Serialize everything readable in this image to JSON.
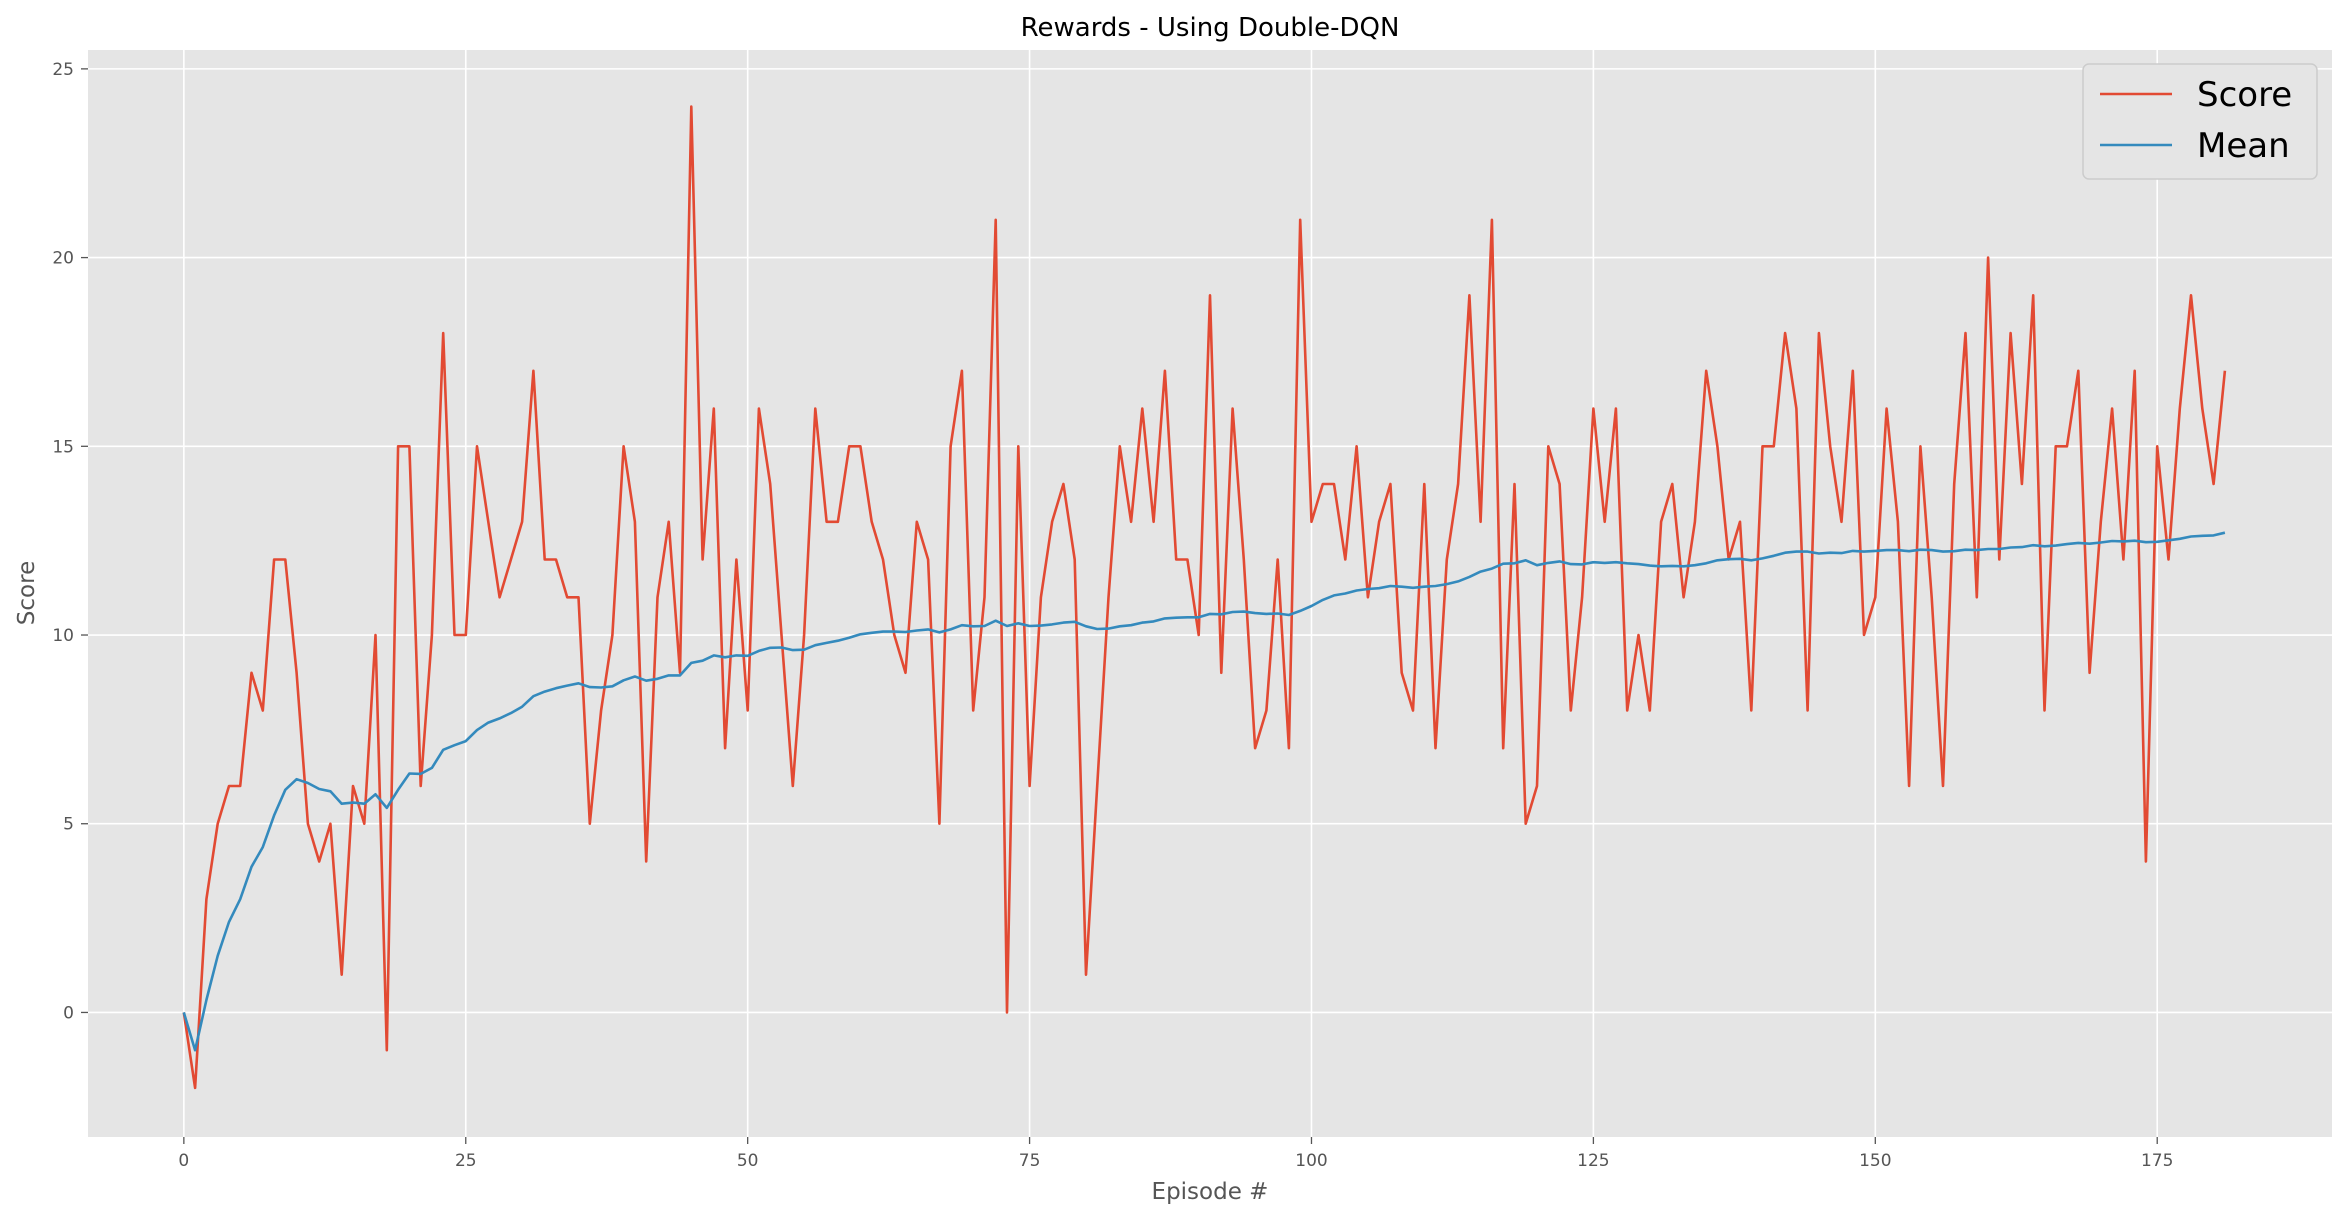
{
  "chart_data": {
    "type": "line",
    "title": "Rewards - Using Double-DQN",
    "xlabel": "Episode #",
    "ylabel": "Score",
    "xlim": [
      -8.5,
      190.5
    ],
    "ylim": [
      -3.3,
      25.5
    ],
    "xticks": [
      0,
      25,
      50,
      75,
      100,
      125,
      150,
      175
    ],
    "yticks": [
      0,
      5,
      10,
      15,
      20,
      25
    ],
    "grid": true,
    "legend": {
      "placement": "top-right"
    },
    "x": [
      0,
      1,
      2,
      3,
      4,
      5,
      6,
      7,
      8,
      9,
      10,
      11,
      12,
      13,
      14,
      15,
      16,
      17,
      18,
      19,
      20,
      21,
      22,
      23,
      24,
      25,
      26,
      27,
      28,
      29,
      30,
      31,
      32,
      33,
      34,
      35,
      36,
      37,
      38,
      39,
      40,
      41,
      42,
      43,
      44,
      45,
      46,
      47,
      48,
      49,
      50,
      51,
      52,
      53,
      54,
      55,
      56,
      57,
      58,
      59,
      60,
      61,
      62,
      63,
      64,
      65,
      66,
      67,
      68,
      69,
      70,
      71,
      72,
      73,
      74,
      75,
      76,
      77,
      78,
      79,
      80,
      81,
      82,
      83,
      84,
      85,
      86,
      87,
      88,
      89,
      90,
      91,
      92,
      93,
      94,
      95,
      96,
      97,
      98,
      99,
      100,
      101,
      102,
      103,
      104,
      105,
      106,
      107,
      108,
      109,
      110,
      111,
      112,
      113,
      114,
      115,
      116,
      117,
      118,
      119,
      120,
      121,
      122,
      123,
      124,
      125,
      126,
      127,
      128,
      129,
      130,
      131,
      132,
      133,
      134,
      135,
      136,
      137,
      138,
      139,
      140,
      141,
      142,
      143,
      144,
      145,
      146,
      147,
      148,
      149,
      150,
      151,
      152,
      153,
      154,
      155,
      156,
      157,
      158,
      159,
      160,
      161,
      162,
      163,
      164,
      165,
      166,
      167,
      168,
      169,
      170,
      171,
      172,
      173,
      174,
      175,
      176,
      177,
      178,
      179,
      180,
      181
    ],
    "series": [
      {
        "name": "Score",
        "color": "#E24A33",
        "values": [
          0,
          -2,
          3,
          5,
          6,
          6,
          9,
          8,
          12,
          12,
          9,
          5,
          4,
          5,
          1,
          6,
          5,
          10,
          -1,
          15,
          15,
          6,
          10,
          18,
          10,
          10,
          15,
          13,
          11,
          12,
          13,
          17,
          12,
          12,
          11,
          11,
          5,
          8,
          10,
          15,
          13,
          4,
          11,
          13,
          9,
          24,
          12,
          16,
          7,
          12,
          8,
          16,
          14,
          10,
          6,
          10,
          16,
          13,
          13,
          15,
          15,
          13,
          12,
          10,
          9,
          13,
          12,
          5,
          15,
          17,
          8,
          11,
          21,
          0,
          15,
          6,
          11,
          13,
          14,
          12,
          1,
          6,
          11,
          15,
          13,
          16,
          13,
          17,
          12,
          12,
          10,
          19,
          9,
          16,
          12,
          7,
          8,
          12,
          7,
          21,
          13,
          14,
          14,
          12,
          15,
          11,
          13,
          14,
          9,
          8,
          14,
          7,
          12,
          14,
          19,
          13,
          21,
          7,
          14,
          5,
          6,
          15,
          14,
          8,
          11,
          16,
          13,
          16,
          8,
          10,
          8,
          13,
          14,
          11,
          13,
          17,
          15,
          12,
          13,
          8,
          15,
          15,
          18,
          16,
          8,
          18,
          15,
          13,
          17,
          10,
          11,
          16,
          13,
          6,
          15,
          11,
          6,
          14,
          18,
          11,
          20,
          12,
          18,
          14,
          19,
          8,
          15,
          15,
          17,
          9,
          13,
          16,
          12,
          17,
          4,
          15,
          12,
          16,
          19,
          16,
          14,
          17
        ]
      },
      {
        "name": "Mean",
        "color": "#348ABD",
        "values": [
          0,
          -1,
          0.33,
          1.5,
          2.4,
          3,
          3.86,
          4.38,
          5.22,
          5.9,
          6.18,
          6.08,
          5.92,
          5.86,
          5.53,
          5.56,
          5.53,
          5.78,
          5.42,
          5.9,
          6.33,
          6.32,
          6.48,
          6.96,
          7.08,
          7.19,
          7.48,
          7.68,
          7.79,
          7.93,
          8.1,
          8.38,
          8.5,
          8.59,
          8.66,
          8.72,
          8.62,
          8.61,
          8.64,
          8.8,
          8.9,
          8.79,
          8.84,
          8.93,
          8.93,
          9.26,
          9.32,
          9.46,
          9.41,
          9.46,
          9.45,
          9.58,
          9.66,
          9.67,
          9.6,
          9.61,
          9.73,
          9.79,
          9.85,
          9.93,
          10.02,
          10.06,
          10.09,
          10.09,
          10.08,
          10.12,
          10.15,
          10.07,
          10.15,
          10.26,
          10.23,
          10.24,
          10.38,
          10.24,
          10.31,
          10.24,
          10.25,
          10.28,
          10.33,
          10.35,
          10.23,
          10.16,
          10.17,
          10.23,
          10.26,
          10.33,
          10.36,
          10.44,
          10.46,
          10.47,
          10.47,
          10.56,
          10.55,
          10.61,
          10.62,
          10.58,
          10.56,
          10.57,
          10.53,
          10.64,
          10.77,
          10.93,
          11.05,
          11.1,
          11.18,
          11.22,
          11.24,
          11.3,
          11.28,
          11.25,
          11.28,
          11.3,
          11.35,
          11.42,
          11.54,
          11.68,
          11.76,
          11.89,
          11.9,
          11.98,
          11.85,
          11.91,
          11.95,
          11.88,
          11.87,
          11.93,
          11.91,
          11.93,
          11.9,
          11.88,
          11.84,
          11.82,
          11.83,
          11.82,
          11.85,
          11.9,
          11.98,
          12.01,
          12.02,
          11.98,
          12.03,
          12.1,
          12.18,
          12.21,
          12.21,
          12.16,
          12.18,
          12.17,
          12.23,
          12.21,
          12.23,
          12.25,
          12.25,
          12.22,
          12.26,
          12.25,
          12.21,
          12.22,
          12.26,
          12.25,
          12.28,
          12.28,
          12.32,
          12.33,
          12.38,
          12.35,
          12.37,
          12.41,
          12.44,
          12.42,
          12.45,
          12.49,
          12.48,
          12.5,
          12.46,
          12.47,
          12.51,
          12.55,
          12.61,
          12.63,
          12.64,
          12.71
        ]
      }
    ]
  }
}
